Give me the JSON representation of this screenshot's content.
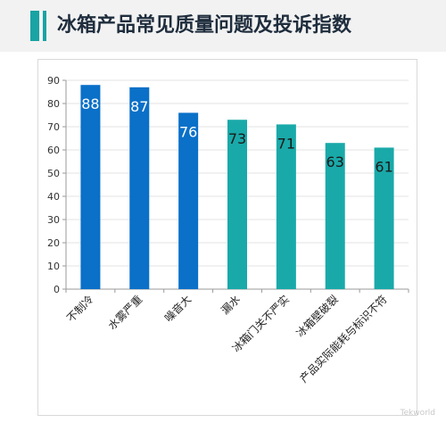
{
  "header": {
    "title": "冰箱产品常见质量问题及投诉指数",
    "accent_color": "#1aa3a3",
    "background": "#f2f2f2"
  },
  "chart_data": {
    "type": "bar",
    "title": "冰箱产品常见质量问题及投诉指数",
    "xlabel": "",
    "ylabel": "",
    "categories": [
      "不制冷",
      "水雾严重",
      "噪音大",
      "漏水",
      "冰箱门关不严实",
      "冰箱壁破裂",
      "产品实际能耗与标识不符"
    ],
    "values": [
      88,
      87,
      76,
      73,
      71,
      63,
      61
    ],
    "colors": [
      "#0a70c8",
      "#0a70c8",
      "#0a70c8",
      "#1aa9a9",
      "#1aa9a9",
      "#1aa9a9",
      "#1aa9a9"
    ],
    "label_colors": [
      "#ffffff",
      "#ffffff",
      "#ffffff",
      "#1a1a1a",
      "#1a1a1a",
      "#1a1a1a",
      "#1a1a1a"
    ],
    "ylim": [
      0,
      90
    ],
    "yticks": [
      0,
      10,
      20,
      30,
      40,
      50,
      60,
      70,
      80,
      90
    ],
    "grid": true
  },
  "watermark": "Tekworld"
}
